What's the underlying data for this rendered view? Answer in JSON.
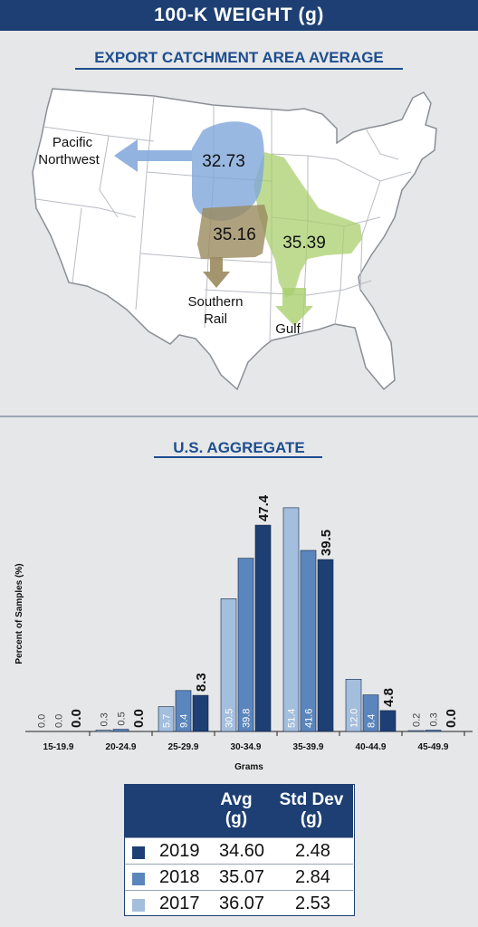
{
  "header": {
    "title": "100-K WEIGHT (g)"
  },
  "map": {
    "title": "EXPORT CATCHMENT AREA AVERAGE",
    "regions": [
      {
        "name": "Pacific Northwest",
        "label_lines": [
          "Pacific",
          "Northwest"
        ],
        "value": "32.73",
        "color": "#7fa6d9"
      },
      {
        "name": "Southern Rail",
        "label_lines": [
          "Southern",
          "Rail"
        ],
        "value": "35.16",
        "color": "#9a8a5e"
      },
      {
        "name": "Gulf",
        "label_lines": [
          "Gulf"
        ],
        "value": "35.39",
        "color": "#a9cf6e"
      }
    ]
  },
  "chart": {
    "title": "U.S. AGGREGATE"
  },
  "chart_data": {
    "type": "bar",
    "xlabel": "Grams",
    "ylabel": "Percent of Samples (%)",
    "categories": [
      "15-19.9",
      "20-24.9",
      "25-29.9",
      "30-34.9",
      "35-39.9",
      "40-44.9",
      "45-49.9"
    ],
    "ylim": [
      0,
      52
    ],
    "grid": false,
    "series": [
      {
        "name": "2017",
        "color": "#a4bedd",
        "values": [
          0.0,
          0.3,
          5.7,
          30.5,
          51.4,
          12.0,
          0.2
        ],
        "labels": [
          "0.0",
          "0.3",
          "5.7",
          "30.5",
          "51.4",
          "12.0",
          "0.2"
        ]
      },
      {
        "name": "2018",
        "color": "#5b86bd",
        "values": [
          0.0,
          0.5,
          9.4,
          39.8,
          41.6,
          8.4,
          0.3
        ],
        "labels": [
          "0.0",
          "0.5",
          "9.4",
          "39.8",
          "41.6",
          "8.4",
          "0.3"
        ]
      },
      {
        "name": "2019",
        "color": "#1d3f73",
        "values": [
          0.0,
          0.0,
          8.3,
          47.4,
          39.5,
          4.8,
          0.0
        ],
        "labels": [
          "0.0",
          "0.0",
          "8.3",
          "47.4",
          "39.5",
          "4.8",
          "0.0"
        ]
      }
    ]
  },
  "stats": {
    "headers": {
      "avg_line1": "Avg",
      "avg_line2": "(g)",
      "sd_line1": "Std Dev",
      "sd_line2": "(g)"
    },
    "rows": [
      {
        "year": "2019",
        "avg": "34.60",
        "sd": "2.48",
        "color": "#1d3f73"
      },
      {
        "year": "2018",
        "avg": "35.07",
        "sd": "2.84",
        "color": "#5b86bd"
      },
      {
        "year": "2017",
        "avg": "36.07",
        "sd": "2.53",
        "color": "#a4bedd"
      }
    ]
  }
}
